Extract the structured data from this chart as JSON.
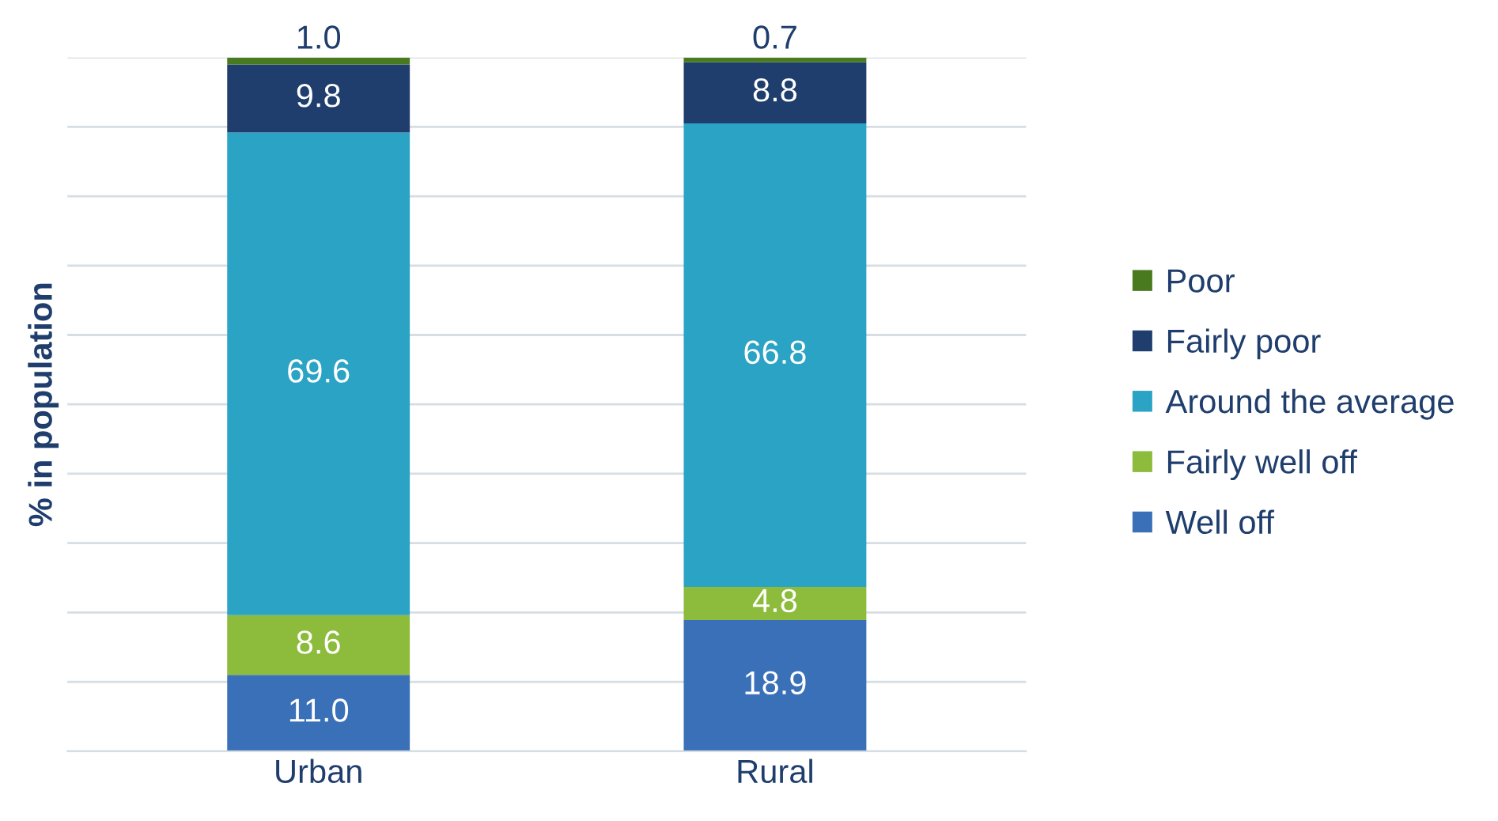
{
  "chart_data": {
    "type": "bar",
    "stacked": true,
    "ylabel": "% in population",
    "categories": [
      "Urban",
      "Rural"
    ],
    "series": [
      {
        "name": "Well off",
        "color": "#3a70b8",
        "values": [
          11.0,
          18.9
        ],
        "value_labels": [
          "11.0",
          "18.9"
        ]
      },
      {
        "name": "Fairly well off",
        "color": "#8dbb3c",
        "values": [
          8.6,
          4.8
        ],
        "value_labels": [
          "8.6",
          "4.8"
        ]
      },
      {
        "name": "Around the average",
        "color": "#2ba3c4",
        "values": [
          69.6,
          66.8
        ],
        "value_labels": [
          "69.6",
          "66.8"
        ]
      },
      {
        "name": "Fairly poor",
        "color": "#1f3e6d",
        "values": [
          9.8,
          8.8
        ],
        "value_labels": [
          "9.8",
          "8.8"
        ]
      },
      {
        "name": "Poor",
        "color": "#4a7a1f",
        "values": [
          1.0,
          0.7
        ],
        "value_labels": [
          "1.0",
          "0.7"
        ]
      }
    ],
    "ylim": [
      0,
      100
    ],
    "yticks": [
      {
        "value": 0,
        "label": null
      },
      {
        "value": 10,
        "label": null
      },
      {
        "value": 20,
        "label": null
      },
      {
        "value": 30,
        "label": null
      },
      {
        "value": 40,
        "label": null
      },
      {
        "value": 50,
        "label": null
      },
      {
        "value": 60,
        "label": null
      },
      {
        "value": 70,
        "label": null
      },
      {
        "value": 80,
        "label": null
      },
      {
        "value": 90,
        "label": null
      },
      {
        "value": 100,
        "label": null
      }
    ],
    "tick_labels": "x",
    "grid": "y",
    "legend": "right"
  }
}
